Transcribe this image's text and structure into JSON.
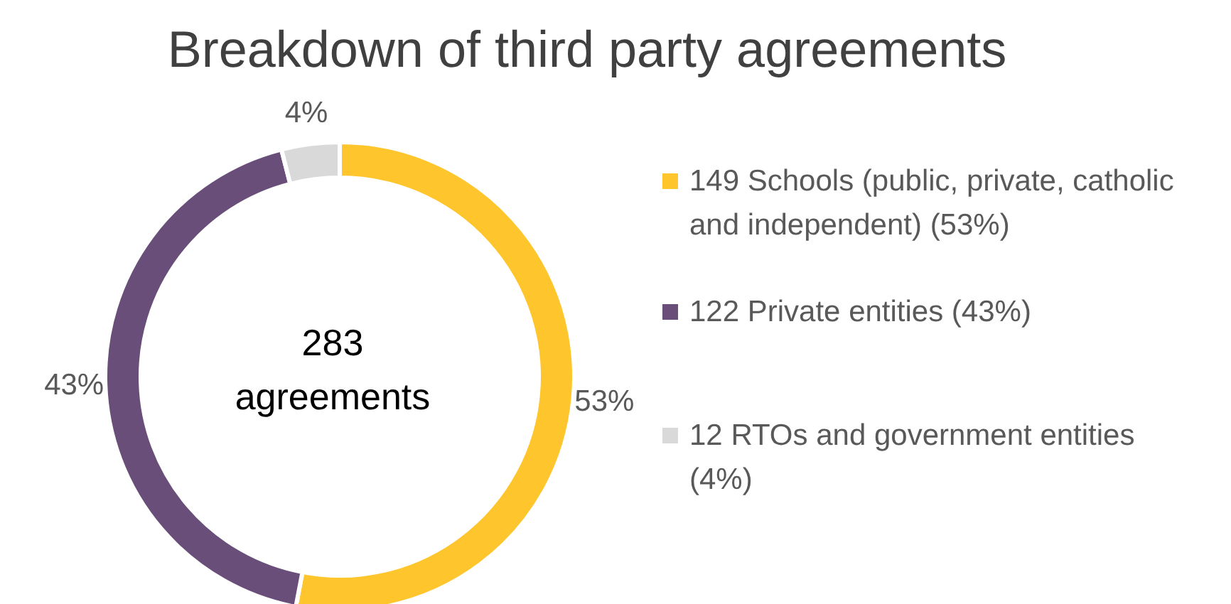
{
  "chart_data": {
    "type": "donut",
    "title": "Breakdown of third party agreements",
    "categories": [
      "149 Schools (public, private, catholic and independent) (53%)",
      "122 Private entities (43%)",
      "12 RTOs and government entities (4%)"
    ],
    "values": [
      53,
      43,
      4
    ],
    "colors": [
      "#ffc52c",
      "#6a4e7a",
      "#d9d9d9"
    ],
    "value_labels": [
      "53%",
      "43%",
      "4%"
    ],
    "annotations": [
      "283 agreements"
    ],
    "legend": "right"
  }
}
